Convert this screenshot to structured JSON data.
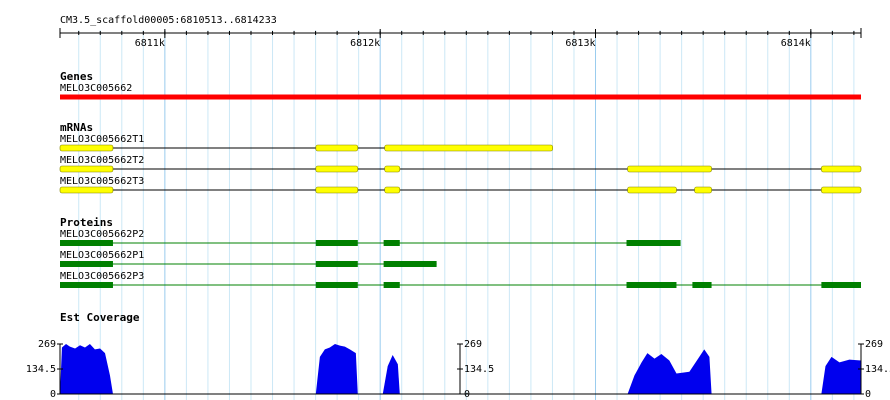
{
  "header": {
    "title": "CM3.5_scaffold00005:6810513..6814233"
  },
  "ruler": {
    "range": [
      6810513,
      6814233
    ],
    "ticks": [
      {
        "value": 6811000,
        "label": "6811k"
      },
      {
        "value": 6812000,
        "label": "6812k"
      },
      {
        "value": 6813000,
        "label": "6813k"
      },
      {
        "value": 6814000,
        "label": "6814k"
      }
    ]
  },
  "tracks": [
    {
      "title": "Genes",
      "features": [
        {
          "name": "MELO3C005662",
          "color": "#ff0000",
          "span": [
            6810513,
            6814233
          ],
          "exons": []
        }
      ]
    },
    {
      "title": "mRNAs",
      "features": [
        {
          "name": "MELO3C005662T1",
          "color": "#ffff00",
          "span": [
            6810513,
            6812801
          ],
          "exons": [
            [
              6810513,
              6810759
            ],
            [
              6811701,
              6811896
            ],
            [
              6812021,
              6812801
            ]
          ]
        },
        {
          "name": "MELO3C005662T2",
          "color": "#ffff00",
          "span": [
            6810513,
            6814233
          ],
          "exons": [
            [
              6810513,
              6810759
            ],
            [
              6811701,
              6811896
            ],
            [
              6812021,
              6812091
            ],
            [
              6813149,
              6813539
            ],
            [
              6814049,
              6814233
            ]
          ]
        },
        {
          "name": "MELO3C005662T3",
          "color": "#ffff00",
          "span": [
            6810513,
            6814233
          ],
          "exons": [
            [
              6810513,
              6810759
            ],
            [
              6811701,
              6811896
            ],
            [
              6812021,
              6812091
            ],
            [
              6813149,
              6813376
            ],
            [
              6813460,
              6813539
            ],
            [
              6814049,
              6814233
            ]
          ]
        }
      ]
    },
    {
      "title": "Proteins",
      "features": [
        {
          "name": "MELO3C005662P2",
          "color": "#008000",
          "span": [
            6810513,
            6813395
          ],
          "exons": [
            [
              6810513,
              6810759
            ],
            [
              6811701,
              6811896
            ],
            [
              6812016,
              6812091
            ],
            [
              6813144,
              6813395
            ]
          ]
        },
        {
          "name": "MELO3C005662P1",
          "color": "#008000",
          "span": [
            6810513,
            6812262
          ],
          "exons": [
            [
              6810513,
              6810759
            ],
            [
              6811701,
              6811896
            ],
            [
              6812016,
              6812262
            ]
          ]
        },
        {
          "name": "MELO3C005662P3",
          "color": "#008000",
          "span": [
            6810513,
            6814233
          ],
          "exons": [
            [
              6810513,
              6810759
            ],
            [
              6811701,
              6811896
            ],
            [
              6812016,
              6812091
            ],
            [
              6813144,
              6813376
            ],
            [
              6813450,
              6813539
            ],
            [
              6814049,
              6814233
            ]
          ]
        }
      ]
    }
  ],
  "coverage": {
    "title": "Est Coverage",
    "color": "#0000ee",
    "ylim": [
      0,
      269
    ],
    "yticks": [
      0,
      134.5,
      269
    ],
    "x": [
      6810513,
      6810522,
      6810541,
      6810559,
      6810583,
      6810606,
      6810629,
      6810652,
      6810675,
      6810699,
      6810722,
      6810745,
      6810759,
      6811701,
      6811720,
      6811743,
      6811766,
      6811790,
      6811813,
      6811836,
      6811859,
      6811887,
      6811896,
      6812012,
      6812035,
      6812058,
      6812082,
      6812091,
      6813149,
      6813181,
      6813214,
      6813241,
      6813274,
      6813306,
      6813343,
      6813376,
      6813436,
      6813482,
      6813505,
      6813529,
      6813539,
      6814049,
      6814068,
      6814096,
      6814133,
      6814179,
      6814233
    ],
    "values": [
      0,
      250,
      269,
      255,
      245,
      262,
      250,
      269,
      240,
      245,
      220,
      100,
      0,
      0,
      200,
      240,
      250,
      269,
      260,
      255,
      240,
      220,
      0,
      0,
      150,
      210,
      160,
      0,
      0,
      100,
      170,
      220,
      190,
      215,
      180,
      110,
      120,
      200,
      240,
      200,
      0,
      0,
      150,
      200,
      170,
      185,
      180
    ]
  }
}
